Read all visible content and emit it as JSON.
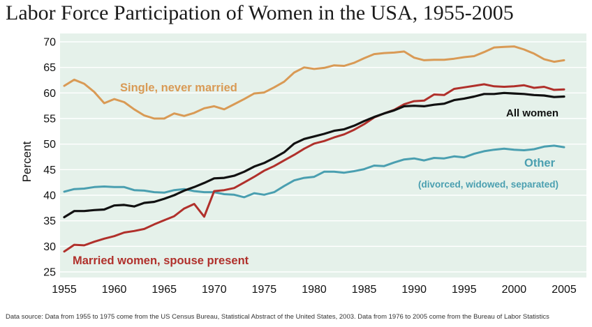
{
  "title": "Labor Force Participation of Women in the USA, 1955-2005",
  "source": "Data source: Data from 1955 to 1975 come from the US Census Bureau, Statistical Abstract of the United States, 2003. Data from 1976 to 2005 come from the Bureau of Labor Statistics",
  "colors": {
    "background_plot": "#e5f1ea",
    "single": "#d99a55",
    "married": "#b0302b",
    "all": "#111111",
    "other": "#4a9fb0",
    "grid": "#ffffff"
  },
  "chart_data": {
    "type": "line",
    "title": "Labor Force Participation of Women in the USA, 1955-2005",
    "xlabel": "",
    "ylabel": "Percent",
    "xlim": [
      1955,
      2005
    ],
    "ylim": [
      25,
      70
    ],
    "xticks": [
      "1955",
      "1960",
      "1965",
      "1970",
      "1975",
      "1980",
      "1985",
      "1990",
      "1995",
      "2000",
      "2005"
    ],
    "yticks": [
      "25",
      "30",
      "35",
      "40",
      "45",
      "50",
      "55",
      "60",
      "65",
      "70"
    ],
    "grid": true,
    "x": [
      1955,
      1956,
      1957,
      1958,
      1959,
      1960,
      1961,
      1962,
      1963,
      1964,
      1965,
      1966,
      1967,
      1968,
      1969,
      1970,
      1971,
      1972,
      1973,
      1974,
      1975,
      1976,
      1977,
      1978,
      1979,
      1980,
      1981,
      1982,
      1983,
      1984,
      1985,
      1986,
      1987,
      1988,
      1989,
      1990,
      1991,
      1992,
      1993,
      1994,
      1995,
      1996,
      1997,
      1998,
      1999,
      2000,
      2001,
      2002,
      2003,
      2004,
      2005
    ],
    "series": [
      {
        "key": "single",
        "name": "Single, never married",
        "values": [
          61.4,
          62.6,
          61.8,
          60.2,
          58.0,
          58.8,
          58.2,
          56.8,
          55.6,
          55.0,
          55.0,
          56.0,
          55.5,
          56.1,
          57.0,
          57.4,
          56.8,
          57.8,
          58.8,
          59.9,
          60.1,
          61.1,
          62.2,
          64.0,
          65.0,
          64.7,
          64.9,
          65.4,
          65.3,
          65.9,
          66.8,
          67.6,
          67.8,
          67.9,
          68.1,
          66.9,
          66.4,
          66.5,
          66.5,
          66.7,
          67.0,
          67.2,
          68.0,
          68.9,
          69.0,
          69.1,
          68.5,
          67.7,
          66.6,
          66.1,
          66.4
        ]
      },
      {
        "key": "married",
        "name": "Married women, spouse present",
        "values": [
          29.0,
          30.3,
          30.2,
          30.9,
          31.5,
          32.0,
          32.7,
          33.0,
          33.4,
          34.3,
          35.1,
          35.9,
          37.4,
          38.3,
          35.8,
          40.8,
          41.0,
          41.4,
          42.5,
          43.6,
          44.8,
          45.7,
          46.8,
          47.9,
          49.1,
          50.1,
          50.6,
          51.3,
          51.9,
          52.8,
          53.9,
          55.2,
          56.0,
          56.7,
          57.8,
          58.4,
          58.5,
          59.7,
          59.6,
          60.8,
          61.1,
          61.4,
          61.7,
          61.3,
          61.2,
          61.3,
          61.5,
          61.0,
          61.2,
          60.6,
          60.7
        ]
      },
      {
        "key": "all",
        "name": "All women",
        "values": [
          35.7,
          36.9,
          36.9,
          37.1,
          37.2,
          38.0,
          38.1,
          37.8,
          38.5,
          38.7,
          39.3,
          40.0,
          40.9,
          41.6,
          42.4,
          43.3,
          43.4,
          43.8,
          44.6,
          45.6,
          46.3,
          47.3,
          48.4,
          50.1,
          51.0,
          51.5,
          52.0,
          52.6,
          52.9,
          53.6,
          54.5,
          55.3,
          56.0,
          56.6,
          57.4,
          57.5,
          57.4,
          57.7,
          57.9,
          58.6,
          58.9,
          59.3,
          59.8,
          59.8,
          60.0,
          59.9,
          59.8,
          59.6,
          59.5,
          59.2,
          59.3
        ]
      },
      {
        "key": "other",
        "name": "Other",
        "values": [
          40.7,
          41.2,
          41.3,
          41.6,
          41.7,
          41.6,
          41.6,
          41.0,
          40.9,
          40.6,
          40.5,
          41.0,
          41.2,
          40.8,
          40.6,
          40.6,
          40.2,
          40.1,
          39.6,
          40.4,
          40.1,
          40.6,
          41.8,
          42.9,
          43.4,
          43.6,
          44.6,
          44.6,
          44.4,
          44.7,
          45.1,
          45.8,
          45.7,
          46.4,
          47.0,
          47.2,
          46.8,
          47.3,
          47.2,
          47.6,
          47.4,
          48.1,
          48.6,
          48.9,
          49.1,
          48.9,
          48.8,
          49.0,
          49.5,
          49.7,
          49.4
        ]
      }
    ],
    "annotations": [
      {
        "key": "single",
        "text": "Single, never married"
      },
      {
        "key": "all",
        "text": "All women"
      },
      {
        "key": "other",
        "text": "Other"
      },
      {
        "key": "other_sub",
        "text": "(divorced, widowed, separated)"
      },
      {
        "key": "married",
        "text": "Married women, spouse present"
      }
    ]
  }
}
